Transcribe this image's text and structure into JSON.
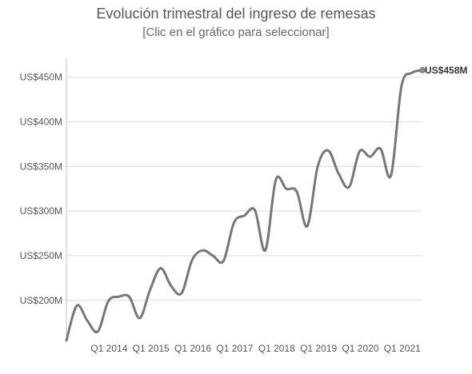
{
  "chart_data": {
    "type": "line",
    "title": "Evolución trimestral del ingreso de remesas",
    "subtitle": "[Clic en el gráfico para seleccionar]",
    "xlabel": "",
    "ylabel": "",
    "x_tick_labels": [
      "Q1 2014",
      "Q1 2015",
      "Q1 2016",
      "Q1 2017",
      "Q1 2018",
      "Q1 2019",
      "Q1 2020",
      "Q1 2021"
    ],
    "y_ticks": [
      200,
      250,
      300,
      350,
      400,
      450
    ],
    "y_tick_labels": [
      "US$200M",
      "US$250M",
      "US$300M",
      "US$350M",
      "US$400M",
      "US$450M"
    ],
    "ylim": [
      155,
      465
    ],
    "grid": true,
    "x": [
      "Q1 2013",
      "Q2 2013",
      "Q3 2013",
      "Q4 2013",
      "Q1 2014",
      "Q2 2014",
      "Q3 2014",
      "Q4 2014",
      "Q1 2015",
      "Q2 2015",
      "Q3 2015",
      "Q4 2015",
      "Q1 2016",
      "Q2 2016",
      "Q3 2016",
      "Q4 2016",
      "Q1 2017",
      "Q2 2017",
      "Q3 2017",
      "Q4 2017",
      "Q1 2018",
      "Q2 2018",
      "Q3 2018",
      "Q4 2018",
      "Q1 2019",
      "Q2 2019",
      "Q3 2019",
      "Q4 2019",
      "Q1 2020",
      "Q2 2020",
      "Q3 2020",
      "Q4 2020",
      "Q1 2021",
      "Q2 2021",
      "Q3 2021"
    ],
    "series": [
      {
        "name": "",
        "color": "#777777",
        "values": [
          155,
          194,
          177,
          165,
          199,
          204,
          204,
          180,
          212,
          236,
          216,
          208,
          245,
          256,
          250,
          244,
          287,
          295,
          301,
          256,
          335,
          325,
          322,
          283,
          350,
          368,
          342,
          327,
          367,
          361,
          370,
          340,
          440,
          455,
          458
        ]
      }
    ],
    "end_label": "US$458M",
    "colors": {
      "line": "#777777",
      "grid": "#d9d9d9",
      "axis": "#bfbfbf",
      "marker": "#888888"
    }
  }
}
